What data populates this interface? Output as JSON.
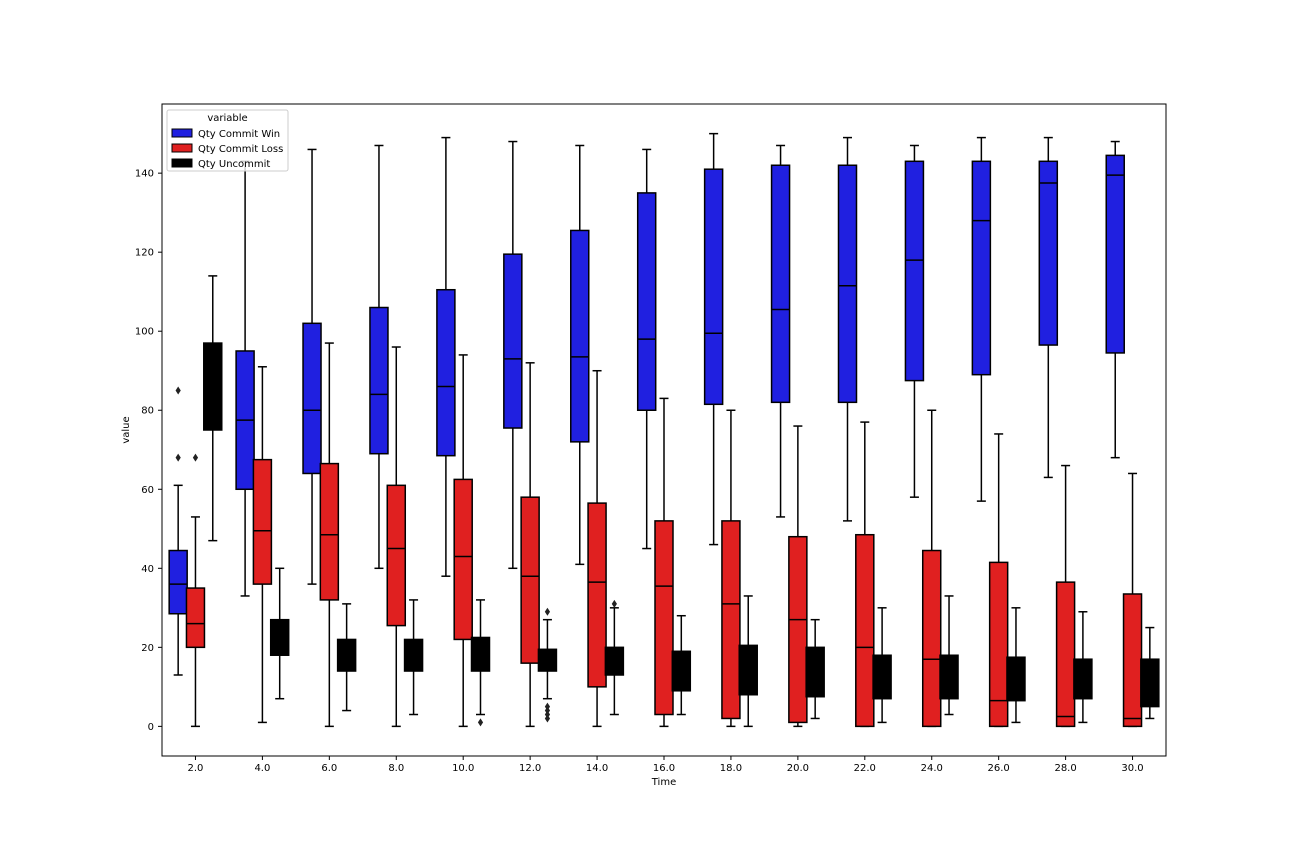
{
  "chart_data": {
    "type": "box",
    "xlabel": "Time",
    "ylabel": "value",
    "ylim": [
      -7.5,
      157.5
    ],
    "yticks": [
      0,
      20,
      40,
      60,
      80,
      100,
      120,
      140
    ],
    "categories": [
      "2.0",
      "4.0",
      "6.0",
      "8.0",
      "10.0",
      "12.0",
      "14.0",
      "16.0",
      "18.0",
      "20.0",
      "22.0",
      "24.0",
      "26.0",
      "28.0",
      "30.0"
    ],
    "legend": {
      "title": "variable",
      "position": "upper-left"
    },
    "series": [
      {
        "name": "Qty Commit Win",
        "color": "#2020e0",
        "boxes": [
          {
            "wlo": 13,
            "q1": 28.5,
            "med": 36,
            "q3": 44.5,
            "whi": 61,
            "outliers": [
              68,
              85
            ]
          },
          {
            "wlo": 33,
            "q1": 60,
            "med": 77.5,
            "q3": 95,
            "whi": 143,
            "outliers": []
          },
          {
            "wlo": 36,
            "q1": 64,
            "med": 80,
            "q3": 102,
            "whi": 146,
            "outliers": []
          },
          {
            "wlo": 40,
            "q1": 69,
            "med": 84,
            "q3": 106,
            "whi": 147,
            "outliers": []
          },
          {
            "wlo": 38,
            "q1": 68.5,
            "med": 86,
            "q3": 110.5,
            "whi": 149,
            "outliers": []
          },
          {
            "wlo": 40,
            "q1": 75.5,
            "med": 93,
            "q3": 119.5,
            "whi": 148,
            "outliers": []
          },
          {
            "wlo": 41,
            "q1": 72,
            "med": 93.5,
            "q3": 125.5,
            "whi": 147,
            "outliers": []
          },
          {
            "wlo": 45,
            "q1": 80,
            "med": 98,
            "q3": 135,
            "whi": 146,
            "outliers": []
          },
          {
            "wlo": 46,
            "q1": 81.5,
            "med": 99.5,
            "q3": 141,
            "whi": 150,
            "outliers": []
          },
          {
            "wlo": 53,
            "q1": 82,
            "med": 105.5,
            "q3": 142,
            "whi": 147,
            "outliers": []
          },
          {
            "wlo": 52,
            "q1": 82,
            "med": 111.5,
            "q3": 142,
            "whi": 149,
            "outliers": []
          },
          {
            "wlo": 58,
            "q1": 87.5,
            "med": 118,
            "q3": 143,
            "whi": 147,
            "outliers": []
          },
          {
            "wlo": 57,
            "q1": 89,
            "med": 128,
            "q3": 143,
            "whi": 149,
            "outliers": []
          },
          {
            "wlo": 63,
            "q1": 96.5,
            "med": 137.5,
            "q3": 143,
            "whi": 149,
            "outliers": []
          },
          {
            "wlo": 68,
            "q1": 94.5,
            "med": 139.5,
            "q3": 144.5,
            "whi": 148,
            "outliers": []
          }
        ]
      },
      {
        "name": "Qty Commit Loss",
        "color": "#e02020",
        "boxes": [
          {
            "wlo": 0,
            "q1": 20,
            "med": 26,
            "q3": 35,
            "whi": 53,
            "outliers": [
              68
            ]
          },
          {
            "wlo": 1,
            "q1": 36,
            "med": 49.5,
            "q3": 67.5,
            "whi": 91,
            "outliers": []
          },
          {
            "wlo": 0,
            "q1": 32,
            "med": 48.5,
            "q3": 66.5,
            "whi": 97,
            "outliers": []
          },
          {
            "wlo": 0,
            "q1": 25.5,
            "med": 45,
            "q3": 61,
            "whi": 96,
            "outliers": []
          },
          {
            "wlo": 0,
            "q1": 22,
            "med": 43,
            "q3": 62.5,
            "whi": 94,
            "outliers": []
          },
          {
            "wlo": 0,
            "q1": 16,
            "med": 38,
            "q3": 58,
            "whi": 92,
            "outliers": []
          },
          {
            "wlo": 0,
            "q1": 10,
            "med": 36.5,
            "q3": 56.5,
            "whi": 90,
            "outliers": []
          },
          {
            "wlo": 0,
            "q1": 3,
            "med": 35.5,
            "q3": 52,
            "whi": 83,
            "outliers": []
          },
          {
            "wlo": 0,
            "q1": 2,
            "med": 31,
            "q3": 52,
            "whi": 80,
            "outliers": []
          },
          {
            "wlo": 0,
            "q1": 1,
            "med": 27,
            "q3": 48,
            "whi": 76,
            "outliers": []
          },
          {
            "wlo": 0,
            "q1": 0,
            "med": 20,
            "q3": 48.5,
            "whi": 77,
            "outliers": []
          },
          {
            "wlo": 0,
            "q1": 0,
            "med": 17,
            "q3": 44.5,
            "whi": 80,
            "outliers": []
          },
          {
            "wlo": 0,
            "q1": 0,
            "med": 6.5,
            "q3": 41.5,
            "whi": 74,
            "outliers": []
          },
          {
            "wlo": 0,
            "q1": 0,
            "med": 2.5,
            "q3": 36.5,
            "whi": 66,
            "outliers": []
          },
          {
            "wlo": 0,
            "q1": 0,
            "med": 2,
            "q3": 33.5,
            "whi": 64,
            "outliers": []
          }
        ]
      },
      {
        "name": "Qty Uncommit",
        "color": "#000000",
        "boxes": [
          {
            "wlo": 47,
            "q1": 75,
            "med": 87,
            "q3": 97,
            "whi": 114,
            "outliers": []
          },
          {
            "wlo": 7,
            "q1": 18,
            "med": 22,
            "q3": 27,
            "whi": 40,
            "outliers": []
          },
          {
            "wlo": 4,
            "q1": 14,
            "med": 18,
            "q3": 22,
            "whi": 31,
            "outliers": []
          },
          {
            "wlo": 3,
            "q1": 14,
            "med": 18,
            "q3": 22,
            "whi": 32,
            "outliers": []
          },
          {
            "wlo": 3,
            "q1": 14,
            "med": 18,
            "q3": 22.5,
            "whi": 32,
            "outliers": [
              1
            ]
          },
          {
            "wlo": 7,
            "q1": 14,
            "med": 16,
            "q3": 19.5,
            "whi": 27,
            "outliers": [
              2,
              3,
              4,
              5,
              29
            ]
          },
          {
            "wlo": 3,
            "q1": 13,
            "med": 17,
            "q3": 20,
            "whi": 30,
            "outliers": [
              31
            ]
          },
          {
            "wlo": 3,
            "q1": 9,
            "med": 14,
            "q3": 19,
            "whi": 28,
            "outliers": []
          },
          {
            "wlo": 0,
            "q1": 8,
            "med": 14,
            "q3": 20.5,
            "whi": 33,
            "outliers": []
          },
          {
            "wlo": 2,
            "q1": 7.5,
            "med": 14,
            "q3": 20,
            "whi": 27,
            "outliers": []
          },
          {
            "wlo": 1,
            "q1": 7,
            "med": 12,
            "q3": 18,
            "whi": 30,
            "outliers": []
          },
          {
            "wlo": 3,
            "q1": 7,
            "med": 12,
            "q3": 18,
            "whi": 33,
            "outliers": []
          },
          {
            "wlo": 1,
            "q1": 6.5,
            "med": 12,
            "q3": 17.5,
            "whi": 30,
            "outliers": []
          },
          {
            "wlo": 1,
            "q1": 7,
            "med": 12,
            "q3": 17,
            "whi": 29,
            "outliers": []
          },
          {
            "wlo": 2,
            "q1": 5,
            "med": 10,
            "q3": 17,
            "whi": 25,
            "outliers": []
          }
        ]
      }
    ]
  }
}
